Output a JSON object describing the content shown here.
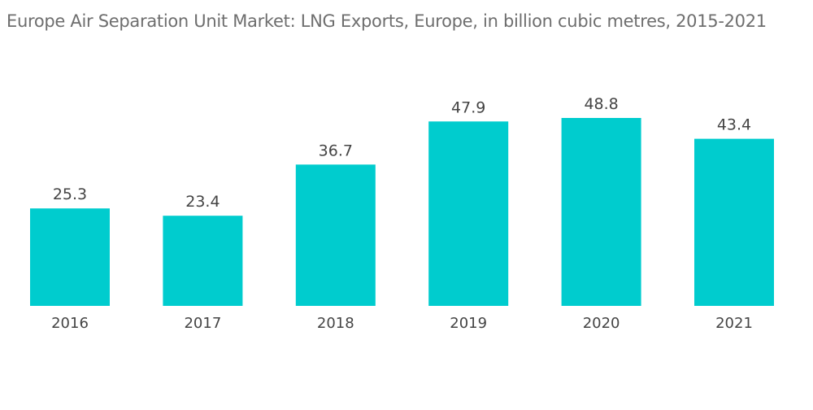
{
  "chart_data": {
    "type": "bar",
    "title": "Europe Air Separation Unit Market: LNG Exports, Europe, in billion cubic metres, 2015-2021",
    "categories": [
      "2016",
      "2017",
      "2018",
      "2019",
      "2020",
      "2021"
    ],
    "values": [
      25.3,
      23.4,
      36.7,
      47.9,
      48.8,
      43.4
    ],
    "value_labels": [
      "25.3",
      "23.4",
      "36.7",
      "47.9",
      "48.8",
      "43.4"
    ],
    "xlabel": "",
    "ylabel": "",
    "ylim": [
      0,
      48.8
    ],
    "grid": false,
    "legend": "none",
    "colors": {
      "bar": "#00ccce",
      "text": "#444444",
      "title": "#6e6e6e"
    }
  }
}
